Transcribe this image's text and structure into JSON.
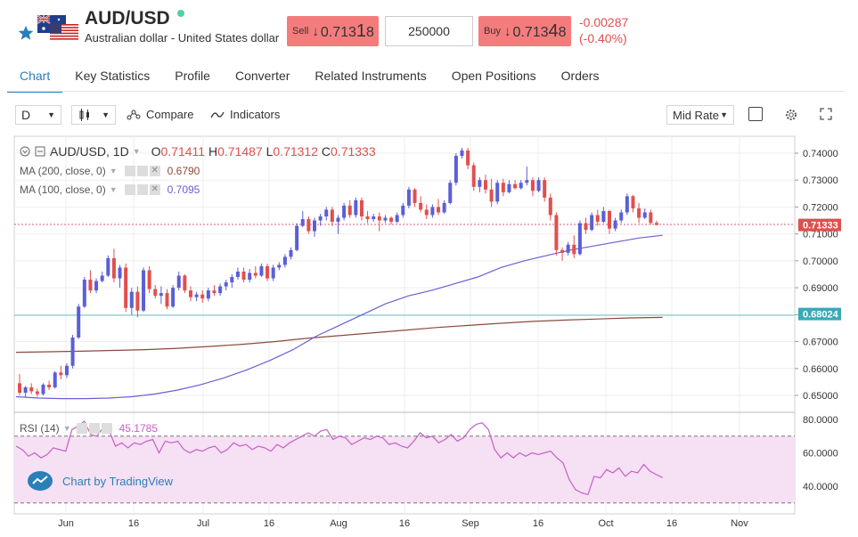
{
  "instrument": {
    "symbol": "AUD/USD",
    "full_name": "Australian dollar - United States dollar",
    "star_icon": "star-icon",
    "flag_icon": "au-us-flag-icon",
    "status_color": "#4fd1a5"
  },
  "trade": {
    "sell_label": "Sell",
    "sell_price_main": "0.713",
    "sell_price_big": "1",
    "sell_price_tail": "8",
    "quantity": "250000",
    "buy_label": "Buy",
    "buy_price_main": "0.713",
    "buy_price_big": "4",
    "buy_price_tail": "8",
    "change_abs": "-0.00287",
    "change_pct": "(-0.40%)",
    "arrow": "↓"
  },
  "tabs": [
    "Chart",
    "Key Statistics",
    "Profile",
    "Converter",
    "Related Instruments",
    "Open Positions",
    "Orders"
  ],
  "active_tab": "Chart",
  "toolbar": {
    "interval": "D",
    "compare_label": "Compare",
    "indicators_label": "Indicators",
    "price_type": "Mid Rate"
  },
  "legend": {
    "title": "AUD/USD, 1D",
    "o_label": "O",
    "o_value": "0.71411",
    "h_label": "H",
    "h_value": "0.71487",
    "l_label": "L",
    "l_value": "0.71312",
    "c_label": "C",
    "c_value": "0.71333",
    "ma200_label": "MA (200, close, 0)",
    "ma200_value": "0.6790",
    "ma100_label": "MA (100, close, 0)",
    "ma100_value": "0.7095",
    "rsi_label": "RSI (14)",
    "rsi_value": "45.1785"
  },
  "branding": {
    "text": "Chart by TradingView"
  },
  "colors": {
    "up": "#5b5fd6",
    "down": "#e0504e",
    "ma100": "#6b5fd6",
    "ma200": "#8b4a3c",
    "rsi": "#c45fc4",
    "rsi_band": "#f6e0f4",
    "accent": "#2a7fb8"
  },
  "chart_data": {
    "type": "candlestick",
    "price_axis": {
      "ticks": [
        "0.74000",
        "0.73000",
        "0.72000",
        "0.71000",
        "0.70000",
        "0.69000",
        "0.68000",
        "0.67000",
        "0.66000",
        "0.65000"
      ],
      "ylim": [
        0.6455,
        0.7435
      ]
    },
    "price_tags": [
      {
        "value": "0.71333",
        "color": "#e0504e"
      },
      {
        "value": "0.68024",
        "color": "#3aa9b6"
      }
    ],
    "x_ticks": [
      "Jun",
      "16",
      "Jul",
      "16",
      "Aug",
      "16",
      "Sep",
      "16",
      "Oct",
      "16",
      "Nov"
    ],
    "rsi_axis": {
      "ticks": [
        "80.0000",
        "60.0000",
        "40.0000"
      ],
      "ylim": [
        31,
        81
      ],
      "band": [
        30,
        70
      ]
    },
    "candles": [
      [
        0.6545,
        0.658,
        0.65,
        0.651
      ],
      [
        0.651,
        0.6535,
        0.6495,
        0.653
      ],
      [
        0.653,
        0.6545,
        0.6505,
        0.6515
      ],
      [
        0.6515,
        0.6525,
        0.6495,
        0.6505
      ],
      [
        0.6505,
        0.6545,
        0.65,
        0.654
      ],
      [
        0.654,
        0.6555,
        0.652,
        0.653
      ],
      [
        0.653,
        0.659,
        0.6525,
        0.6585
      ],
      [
        0.6585,
        0.661,
        0.656,
        0.6575
      ],
      [
        0.6575,
        0.662,
        0.6565,
        0.661
      ],
      [
        0.661,
        0.6725,
        0.66,
        0.6715
      ],
      [
        0.6715,
        0.684,
        0.671,
        0.683
      ],
      [
        0.683,
        0.694,
        0.6825,
        0.693
      ],
      [
        0.693,
        0.6965,
        0.688,
        0.689
      ],
      [
        0.689,
        0.6935,
        0.688,
        0.6925
      ],
      [
        0.6925,
        0.696,
        0.692,
        0.6945
      ],
      [
        0.6945,
        0.702,
        0.694,
        0.701
      ],
      [
        0.701,
        0.7045,
        0.692,
        0.6935
      ],
      [
        0.6935,
        0.6985,
        0.69,
        0.6975
      ],
      [
        0.6975,
        0.699,
        0.681,
        0.6825
      ],
      [
        0.6825,
        0.69,
        0.68,
        0.6885
      ],
      [
        0.6885,
        0.6905,
        0.679,
        0.6815
      ],
      [
        0.6815,
        0.6975,
        0.681,
        0.6965
      ],
      [
        0.6965,
        0.698,
        0.688,
        0.6895
      ],
      [
        0.6895,
        0.691,
        0.686,
        0.687
      ],
      [
        0.687,
        0.6905,
        0.684,
        0.688
      ],
      [
        0.688,
        0.6895,
        0.682,
        0.683
      ],
      [
        0.683,
        0.691,
        0.6825,
        0.69
      ],
      [
        0.69,
        0.696,
        0.689,
        0.6945
      ],
      [
        0.6945,
        0.695,
        0.688,
        0.689
      ],
      [
        0.689,
        0.6905,
        0.685,
        0.6865
      ],
      [
        0.6865,
        0.6885,
        0.685,
        0.6875
      ],
      [
        0.6875,
        0.689,
        0.6845,
        0.686
      ],
      [
        0.686,
        0.69,
        0.685,
        0.689
      ],
      [
        0.689,
        0.691,
        0.687,
        0.688
      ],
      [
        0.688,
        0.6915,
        0.687,
        0.6905
      ],
      [
        0.6905,
        0.693,
        0.689,
        0.692
      ],
      [
        0.692,
        0.695,
        0.69,
        0.694
      ],
      [
        0.694,
        0.6975,
        0.693,
        0.696
      ],
      [
        0.696,
        0.6975,
        0.692,
        0.693
      ],
      [
        0.693,
        0.697,
        0.692,
        0.6955
      ],
      [
        0.6955,
        0.698,
        0.6935,
        0.6945
      ],
      [
        0.6945,
        0.699,
        0.694,
        0.698
      ],
      [
        0.698,
        0.699,
        0.6925,
        0.6935
      ],
      [
        0.6935,
        0.6985,
        0.6925,
        0.6975
      ],
      [
        0.6975,
        0.6995,
        0.6965,
        0.6985
      ],
      [
        0.6985,
        0.7025,
        0.6975,
        0.7015
      ],
      [
        0.7015,
        0.705,
        0.7005,
        0.704
      ],
      [
        0.704,
        0.714,
        0.7035,
        0.713
      ],
      [
        0.713,
        0.7185,
        0.7125,
        0.7155
      ],
      [
        0.7155,
        0.7165,
        0.71,
        0.711
      ],
      [
        0.711,
        0.716,
        0.709,
        0.715
      ],
      [
        0.715,
        0.7175,
        0.713,
        0.7165
      ],
      [
        0.7165,
        0.72,
        0.715,
        0.719
      ],
      [
        0.719,
        0.72,
        0.713,
        0.7145
      ],
      [
        0.7145,
        0.717,
        0.71,
        0.716
      ],
      [
        0.716,
        0.7215,
        0.715,
        0.7205
      ],
      [
        0.7205,
        0.7225,
        0.716,
        0.717
      ],
      [
        0.717,
        0.7235,
        0.716,
        0.7225
      ],
      [
        0.7225,
        0.7235,
        0.715,
        0.7165
      ],
      [
        0.7165,
        0.7185,
        0.714,
        0.7155
      ],
      [
        0.7155,
        0.7175,
        0.7145,
        0.7165
      ],
      [
        0.7165,
        0.718,
        0.711,
        0.715
      ],
      [
        0.715,
        0.717,
        0.714,
        0.716
      ],
      [
        0.716,
        0.7165,
        0.7135,
        0.7145
      ],
      [
        0.7145,
        0.718,
        0.714,
        0.717
      ],
      [
        0.717,
        0.7215,
        0.716,
        0.7205
      ],
      [
        0.7205,
        0.7275,
        0.7195,
        0.7265
      ],
      [
        0.7265,
        0.727,
        0.72,
        0.7215
      ],
      [
        0.7215,
        0.724,
        0.718,
        0.719
      ],
      [
        0.719,
        0.721,
        0.7155,
        0.717
      ],
      [
        0.717,
        0.721,
        0.716,
        0.72
      ],
      [
        0.72,
        0.723,
        0.717,
        0.718
      ],
      [
        0.718,
        0.7225,
        0.7175,
        0.7215
      ],
      [
        0.7215,
        0.73,
        0.721,
        0.729
      ],
      [
        0.729,
        0.74,
        0.728,
        0.739
      ],
      [
        0.739,
        0.742,
        0.738,
        0.741
      ],
      [
        0.741,
        0.742,
        0.734,
        0.7355
      ],
      [
        0.7355,
        0.7365,
        0.726,
        0.7275
      ],
      [
        0.7275,
        0.731,
        0.7255,
        0.73
      ],
      [
        0.73,
        0.732,
        0.725,
        0.7265
      ],
      [
        0.7265,
        0.7305,
        0.72,
        0.722
      ],
      [
        0.722,
        0.73,
        0.721,
        0.729
      ],
      [
        0.729,
        0.7305,
        0.724,
        0.7255
      ],
      [
        0.7255,
        0.73,
        0.725,
        0.7285
      ],
      [
        0.7285,
        0.73,
        0.7265,
        0.727
      ],
      [
        0.727,
        0.73,
        0.7265,
        0.729
      ],
      [
        0.729,
        0.735,
        0.728,
        0.73
      ],
      [
        0.73,
        0.731,
        0.724,
        0.726
      ],
      [
        0.726,
        0.731,
        0.7255,
        0.73
      ],
      [
        0.73,
        0.731,
        0.722,
        0.7235
      ],
      [
        0.7235,
        0.725,
        0.715,
        0.717
      ],
      [
        0.717,
        0.718,
        0.702,
        0.704
      ],
      [
        0.704,
        0.705,
        0.7,
        0.703
      ],
      [
        0.703,
        0.707,
        0.702,
        0.706
      ],
      [
        0.706,
        0.7095,
        0.701,
        0.7025
      ],
      [
        0.7025,
        0.715,
        0.702,
        0.714
      ],
      [
        0.714,
        0.716,
        0.71,
        0.7115
      ],
      [
        0.7115,
        0.718,
        0.711,
        0.717
      ],
      [
        0.717,
        0.719,
        0.713,
        0.7145
      ],
      [
        0.7145,
        0.72,
        0.714,
        0.7185
      ],
      [
        0.7185,
        0.719,
        0.71,
        0.712
      ],
      [
        0.712,
        0.716,
        0.711,
        0.715
      ],
      [
        0.715,
        0.719,
        0.714,
        0.718
      ],
      [
        0.718,
        0.725,
        0.717,
        0.724
      ],
      [
        0.724,
        0.7245,
        0.718,
        0.7195
      ],
      [
        0.7195,
        0.7215,
        0.714,
        0.716
      ],
      [
        0.716,
        0.7195,
        0.7155,
        0.718
      ],
      [
        0.718,
        0.719,
        0.7135,
        0.7141
      ],
      [
        0.71411,
        0.71487,
        0.71312,
        0.71333
      ]
    ],
    "ma100": [
      0.6495,
      0.649,
      0.6488,
      0.6488,
      0.649,
      0.6495,
      0.6505,
      0.652,
      0.654,
      0.6565,
      0.6595,
      0.663,
      0.667,
      0.672,
      0.676,
      0.68,
      0.684,
      0.687,
      0.689,
      0.6915,
      0.694,
      0.6975,
      0.7,
      0.702,
      0.704,
      0.7055,
      0.707,
      0.7085,
      0.7095
    ],
    "ma200": [
      0.666,
      0.6662,
      0.6664,
      0.6667,
      0.667,
      0.6675,
      0.6682,
      0.669,
      0.67,
      0.6712,
      0.6722,
      0.6732,
      0.6742,
      0.6752,
      0.676,
      0.6768,
      0.6775,
      0.678,
      0.6784,
      0.6788,
      0.679
    ],
    "rsi": [
      64,
      62,
      58,
      60,
      57,
      59,
      63,
      62,
      61,
      74,
      76,
      79,
      71,
      70,
      75,
      73,
      64,
      66,
      63,
      66,
      65,
      67,
      68,
      60,
      67,
      66,
      67,
      62,
      60,
      62,
      61,
      63,
      64,
      60,
      62,
      66,
      64,
      65,
      62,
      64,
      63,
      61,
      65,
      63,
      66,
      68,
      70,
      72,
      70,
      73,
      74,
      68,
      70,
      69,
      65,
      67,
      69,
      68,
      70,
      69,
      65,
      66,
      64,
      63,
      67,
      72,
      69,
      70,
      66,
      68,
      71,
      67,
      69,
      74,
      77,
      78,
      74,
      62,
      57,
      60,
      57,
      60,
      58,
      60,
      59,
      60,
      61,
      57,
      54,
      44,
      38,
      36,
      35,
      46,
      45,
      50,
      48,
      51,
      46,
      49,
      48,
      53,
      49,
      47,
      45.18
    ],
    "last_index": 109
  }
}
